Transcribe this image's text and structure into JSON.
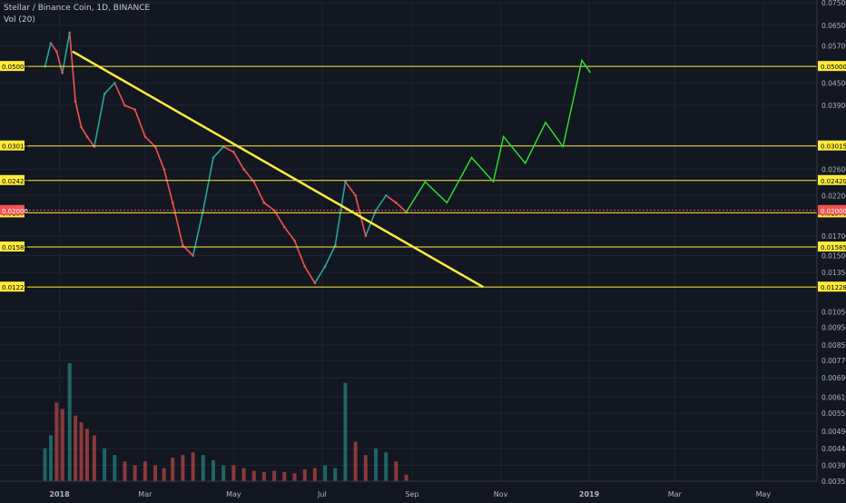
{
  "header": {
    "symbol_line": "Stellar / Binance Coin, 1D, BINANCE",
    "volume_label": "Vol (20)"
  },
  "chart_data": {
    "type": "line",
    "y_scale": "log",
    "ylim": [
      0.00357,
      0.075
    ],
    "y_ticks": [
      "0.07500",
      "0.06500",
      "0.05700",
      "0.04500",
      "0.03900",
      "0.02600",
      "0.02200",
      "0.01700",
      "0.01500",
      "0.01350",
      "0.01050",
      "0.00950",
      "0.00850",
      "0.00770",
      "0.00690",
      "0.00610",
      "0.00550",
      "0.00490",
      "0.00440",
      "0.00395",
      "0.00357"
    ],
    "x_ticks": [
      "2018",
      "Mar",
      "May",
      "Jul",
      "Sep",
      "Nov",
      "2019",
      "Mar",
      "May"
    ],
    "x_tick_dates": [
      "2018-01-01",
      "2018-03-01",
      "2018-05-01",
      "2018-07-01",
      "2018-09-01",
      "2018-11-01",
      "2019-01-01",
      "2019-03-01",
      "2019-05-01"
    ],
    "price_series": {
      "x": [
        "2017-12-22",
        "2017-12-26",
        "2017-12-30",
        "2018-01-03",
        "2018-01-08",
        "2018-01-12",
        "2018-01-16",
        "2018-01-20",
        "2018-01-25",
        "2018-02-01",
        "2018-02-08",
        "2018-02-15",
        "2018-02-22",
        "2018-03-01",
        "2018-03-08",
        "2018-03-14",
        "2018-03-20",
        "2018-03-27",
        "2018-04-03",
        "2018-04-10",
        "2018-04-17",
        "2018-04-24",
        "2018-05-01",
        "2018-05-08",
        "2018-05-15",
        "2018-05-22",
        "2018-05-29",
        "2018-06-05",
        "2018-06-12",
        "2018-06-19",
        "2018-06-26",
        "2018-07-03",
        "2018-07-10",
        "2018-07-17",
        "2018-07-24",
        "2018-07-31",
        "2018-08-07",
        "2018-08-14",
        "2018-08-21",
        "2018-08-28"
      ],
      "y": [
        0.05,
        0.058,
        0.055,
        0.048,
        0.062,
        0.04,
        0.034,
        0.032,
        0.03,
        0.042,
        0.045,
        0.039,
        0.038,
        0.032,
        0.03,
        0.026,
        0.021,
        0.016,
        0.015,
        0.02,
        0.028,
        0.03,
        0.029,
        0.026,
        0.024,
        0.021,
        0.02,
        0.018,
        0.0165,
        0.014,
        0.0126,
        0.014,
        0.016,
        0.024,
        0.022,
        0.017,
        0.02,
        0.022,
        0.021,
        0.0198
      ]
    },
    "volume_series": {
      "x": [
        "2017-12-22",
        "2017-12-26",
        "2017-12-30",
        "2018-01-03",
        "2018-01-08",
        "2018-01-12",
        "2018-01-16",
        "2018-01-20",
        "2018-01-25",
        "2018-02-01",
        "2018-02-08",
        "2018-02-15",
        "2018-02-22",
        "2018-03-01",
        "2018-03-08",
        "2018-03-14",
        "2018-03-20",
        "2018-03-27",
        "2018-04-03",
        "2018-04-10",
        "2018-04-17",
        "2018-04-24",
        "2018-05-01",
        "2018-05-08",
        "2018-05-15",
        "2018-05-22",
        "2018-05-29",
        "2018-06-05",
        "2018-06-12",
        "2018-06-19",
        "2018-06-26",
        "2018-07-03",
        "2018-07-10",
        "2018-07-17",
        "2018-07-24",
        "2018-07-31",
        "2018-08-07",
        "2018-08-14",
        "2018-08-21",
        "2018-08-28"
      ],
      "y": [
        0.25,
        0.35,
        0.6,
        0.55,
        0.9,
        0.5,
        0.45,
        0.4,
        0.35,
        0.25,
        0.2,
        0.15,
        0.12,
        0.15,
        0.12,
        0.1,
        0.18,
        0.2,
        0.22,
        0.2,
        0.16,
        0.12,
        0.12,
        0.1,
        0.08,
        0.07,
        0.08,
        0.07,
        0.06,
        0.09,
        0.1,
        0.12,
        0.1,
        0.75,
        0.3,
        0.2,
        0.25,
        0.22,
        0.15,
        0.05
      ],
      "up_color": "#26a69a",
      "down_color": "#ef5350"
    },
    "horizontal_levels": [
      {
        "value": 0.05,
        "label": "0.05000"
      },
      {
        "value": 0.03015,
        "label": "0.03015"
      },
      {
        "value": 0.0242,
        "label": "0.02420"
      },
      {
        "value": 0.0197,
        "label": "0.01970"
      },
      {
        "value": 0.01585,
        "label": "0.01585"
      },
      {
        "value": 0.01228,
        "label": "0.01228"
      }
    ],
    "level_color": "#ffeb3b",
    "current_price": {
      "value": 0.02,
      "label": "0.02000",
      "color": "#ef5350"
    },
    "trendline": {
      "points": [
        {
          "x": "2018-01-10",
          "y": 0.055
        },
        {
          "x": "2018-10-20",
          "y": 0.01228
        }
      ],
      "color": "#ffeb3b"
    },
    "projection": {
      "x": [
        "2018-08-28",
        "2018-09-10",
        "2018-09-25",
        "2018-10-12",
        "2018-10-27",
        "2018-11-03",
        "2018-11-18",
        "2018-12-02",
        "2018-12-14",
        "2018-12-27",
        "2019-01-02"
      ],
      "y": [
        0.0198,
        0.024,
        0.021,
        0.028,
        0.024,
        0.032,
        0.027,
        0.035,
        0.03,
        0.052,
        0.048
      ],
      "color": "#2ee62e"
    },
    "grid": true,
    "background": "#131722"
  }
}
